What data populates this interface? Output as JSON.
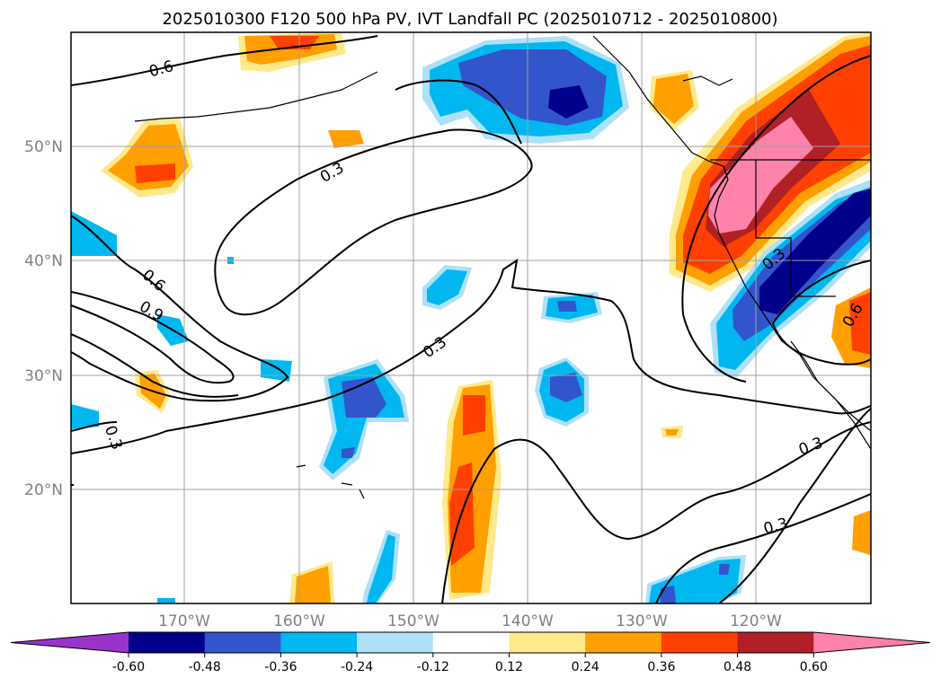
{
  "title": "2025010300 F120 500 hPa PV, IVT Landfall PC (2025010712 - 2025010800)",
  "map": {
    "lat_labels": [
      "50°N",
      "40°N",
      "30°N",
      "20°N"
    ],
    "lon_labels": [
      "170°W",
      "160°W",
      "150°W",
      "140°W",
      "130°W",
      "120°W"
    ],
    "extent": {
      "lon": [
        -180,
        -110
      ],
      "lat": [
        10,
        60
      ]
    }
  },
  "contour_labels": [
    "0.6",
    "0.3",
    "0.6",
    "0.9",
    "0.3",
    "0.3",
    "0.3",
    "0.3",
    "0.3",
    "0.6"
  ],
  "colorbar": {
    "ticks": [
      "-0.60",
      "-0.48",
      "-0.36",
      "-0.24",
      "-0.12",
      "0.12",
      "0.24",
      "0.36",
      "0.48",
      "0.60"
    ],
    "colors": [
      "#9933cc",
      "#00008b",
      "#3355cc",
      "#00b7f0",
      "#aee1f8",
      "#ffffff",
      "#ffe98a",
      "#ff9f00",
      "#ff4000",
      "#b02025",
      "#ff82aa"
    ]
  }
}
